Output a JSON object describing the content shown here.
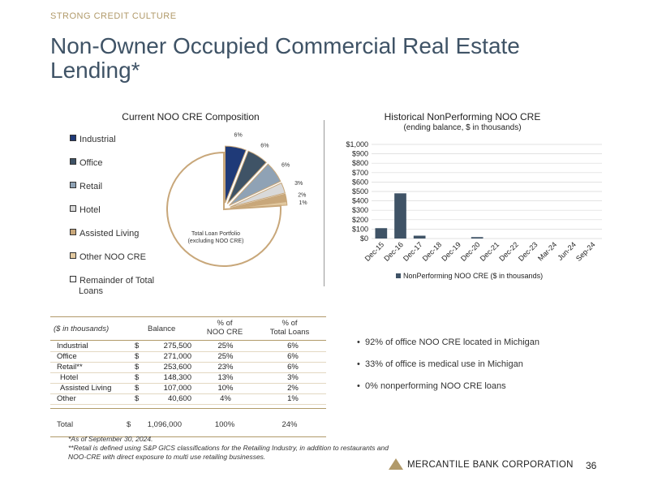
{
  "header": {
    "eyebrow": "STRONG CREDIT CULTURE",
    "title": "Non-Owner Occupied Commercial Real Estate Lending*"
  },
  "pie_chart": {
    "title": "Current NOO CRE Composition",
    "center_label_1": "Total Loan Portfolio",
    "center_label_2": "(excluding NOO CRE)",
    "legend": [
      {
        "label": "Industrial",
        "color": "#1f3a78"
      },
      {
        "label": "Office",
        "color": "#3f5366"
      },
      {
        "label": "Retail",
        "color": "#8fa2b5"
      },
      {
        "label": "Hotel",
        "color": "#d9d9d9"
      },
      {
        "label": "Assisted Living",
        "color": "#c8a77a"
      },
      {
        "label": "Other NOO CRE",
        "color": "#e2c9a0"
      },
      {
        "label": "Remainder of Total",
        "label2": "Loans",
        "color": "#ffffff"
      }
    ]
  },
  "bar_chart": {
    "title": "Historical NonPerforming NOO CRE",
    "subtitle": "(ending balance, $ in thousands)",
    "legend": "NonPerforming NOO CRE ($ in thousands)",
    "bar_color": "#3f5366"
  },
  "chart_data": [
    {
      "type": "pie",
      "title": "Current NOO CRE Composition",
      "labels": [
        "Industrial",
        "Office",
        "Retail",
        "Hotel",
        "Assisted Living",
        "Other NOO CRE",
        "Remainder of Total Loans"
      ],
      "values": [
        6,
        6,
        6,
        3,
        2,
        1,
        76
      ],
      "data_labels": [
        "6%",
        "6%",
        "6%",
        "3%",
        "2%",
        "1%",
        ""
      ]
    },
    {
      "type": "bar",
      "title": "Historical NonPerforming NOO CRE",
      "subtitle": "(ending balance, $ in thousands)",
      "categories": [
        "Dec-15",
        "Dec-16",
        "Dec-17",
        "Dec-18",
        "Dec-19",
        "Dec-20",
        "Dec-21",
        "Dec-22",
        "Dec-23",
        "Mar-24",
        "Jun-24",
        "Sep-24"
      ],
      "values": [
        110,
        480,
        30,
        0,
        0,
        15,
        0,
        0,
        0,
        0,
        0,
        0
      ],
      "ylim": [
        0,
        1000
      ],
      "yticks": [
        0,
        100,
        200,
        300,
        400,
        500,
        600,
        700,
        800,
        900,
        1000
      ],
      "ytick_labels": [
        "$0",
        "$100",
        "$200",
        "$300",
        "$400",
        "$500",
        "$600",
        "$700",
        "$800",
        "$900",
        "$1,000"
      ],
      "legend": "NonPerforming NOO CRE ($ in thousands)"
    }
  ],
  "table": {
    "headers": [
      "($ in thousands)",
      "Balance",
      "% of",
      "NOO CRE",
      "% of",
      "Total Loans"
    ],
    "rows": [
      {
        "name": "Industrial",
        "cur": "$",
        "balance": "275,500",
        "pct_noo": "25%",
        "pct_total": "6%"
      },
      {
        "name": "Office",
        "cur": "$",
        "balance": "271,000",
        "pct_noo": "25%",
        "pct_total": "6%"
      },
      {
        "name": "Retail**",
        "cur": "$",
        "balance": "253,600",
        "pct_noo": "23%",
        "pct_total": "6%"
      },
      {
        "name": "Hotel",
        "cur": "$",
        "balance": "148,300",
        "pct_noo": "13%",
        "pct_total": "3%"
      },
      {
        "name": "Assisted Living",
        "cur": "$",
        "balance": "107,000",
        "pct_noo": "10%",
        "pct_total": "2%"
      },
      {
        "name": "Other",
        "cur": "$",
        "balance": "40,600",
        "pct_noo": "4%",
        "pct_total": "1%"
      }
    ],
    "total": {
      "name": "Total",
      "cur": "$",
      "balance": "1,096,000",
      "pct_noo": "100%",
      "pct_total": "24%"
    }
  },
  "bullets": [
    "92% of office NOO CRE located in Michigan",
    "33% of office is medical use in Michigan",
    "0% nonperforming NOO CRE loans"
  ],
  "footnotes": {
    "line1": "*As of September 30, 2024.",
    "line2": "**Retail is defined using S&P GICS classifications for the Retailing Industry, in addition to restaurants and",
    "line3": "NOO-CRE with direct exposure to multi use retailing businesses."
  },
  "footer": {
    "brand": "MERCANTILE BANK CORPORATION",
    "page": "36",
    "brand_color": "#b19a6a"
  }
}
